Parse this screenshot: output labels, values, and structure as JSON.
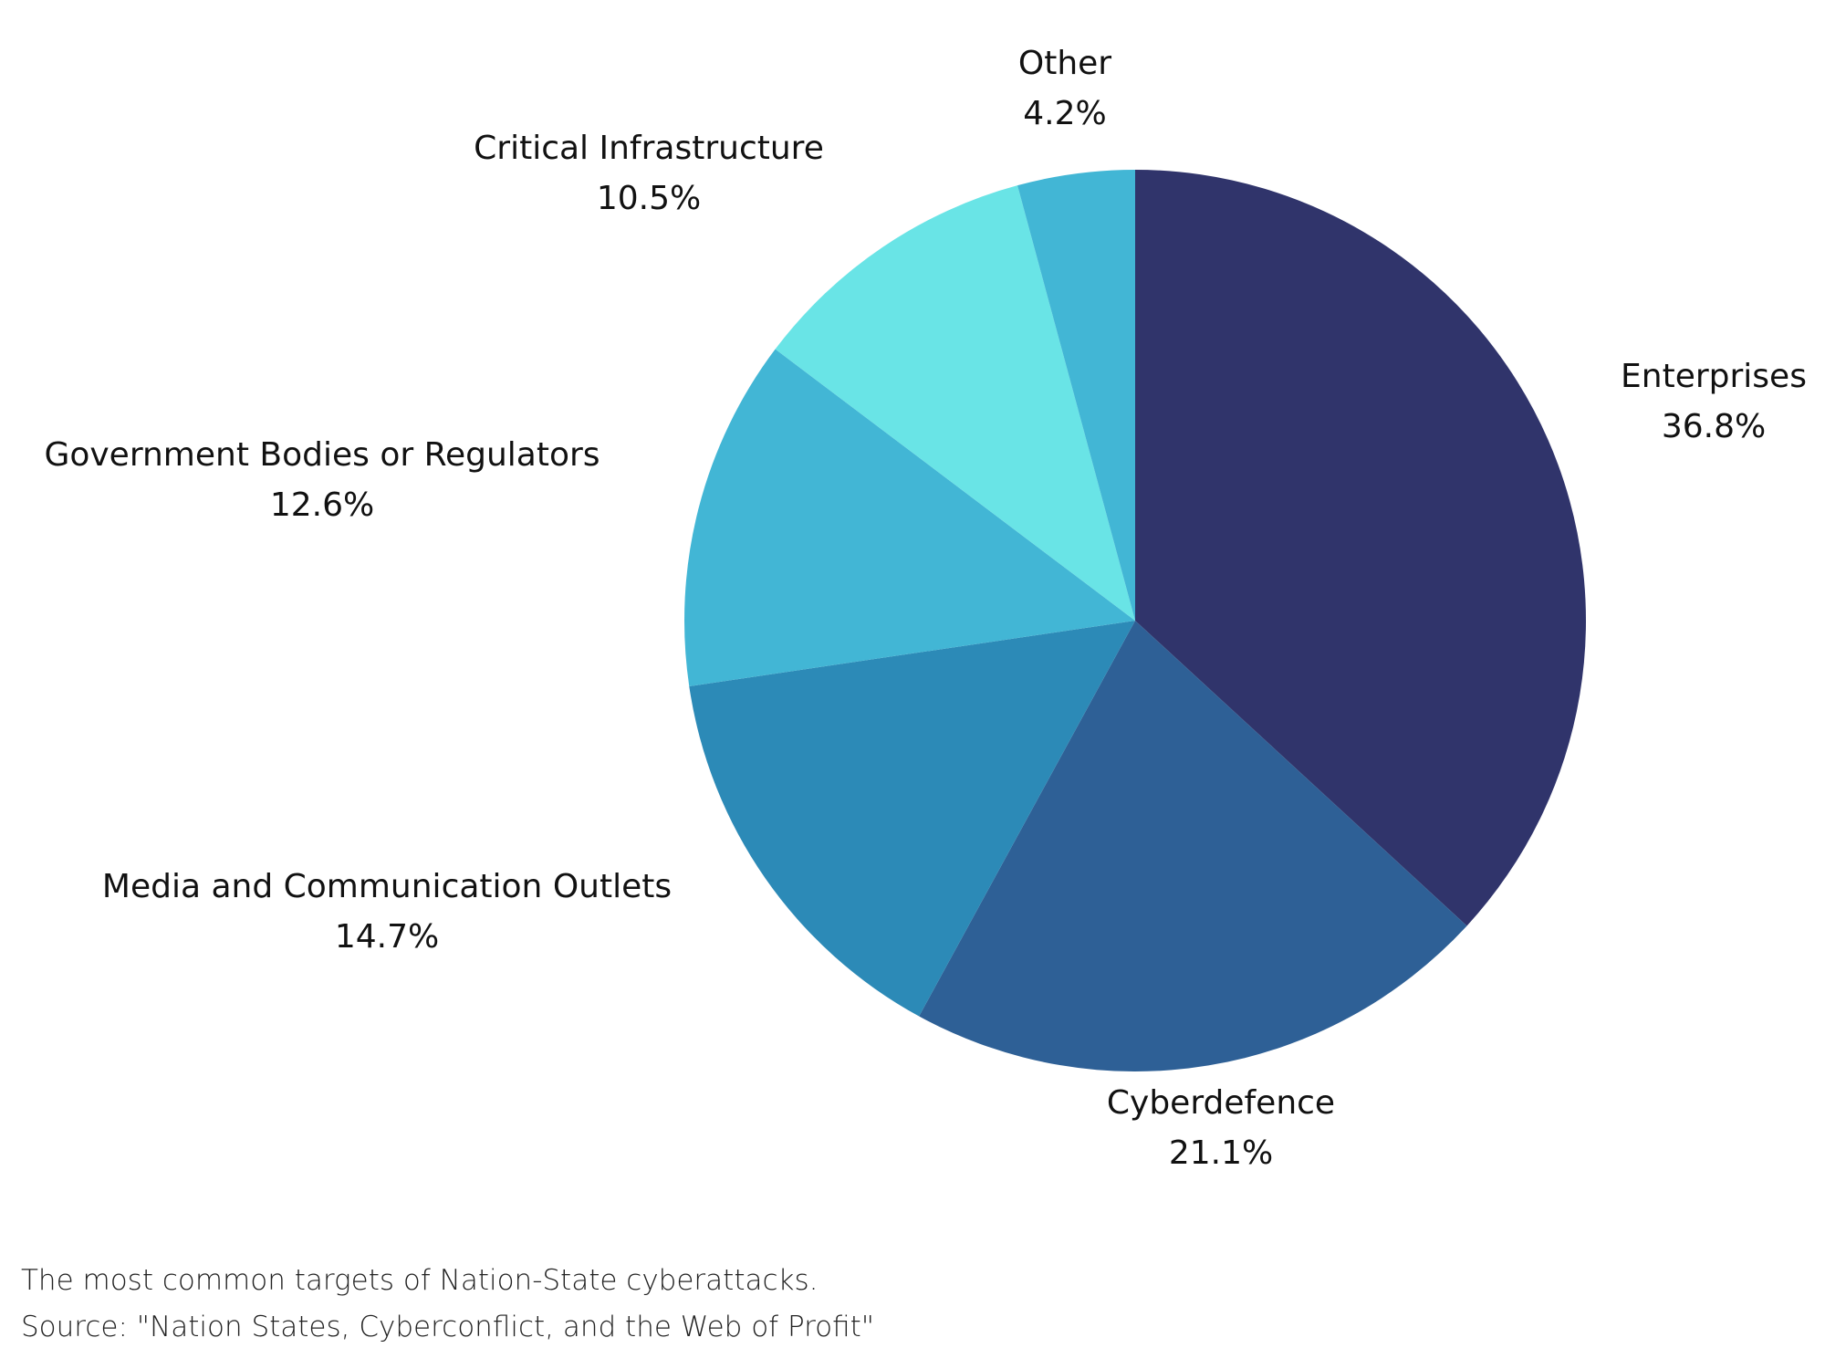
{
  "chart_data": {
    "type": "pie",
    "start_angle": "12 o'clock",
    "direction": "clockwise",
    "slices": [
      {
        "label": "Enterprises",
        "value": 36.8,
        "value_label": "36.8%",
        "color": "#30346b"
      },
      {
        "label": "Cyberdefence",
        "value": 21.1,
        "value_label": "21.1%",
        "color": "#2e6096"
      },
      {
        "label": "Media and Communication Outlets",
        "value": 14.7,
        "value_label": "14.7%",
        "color": "#2c8ab7"
      },
      {
        "label": "Government Bodies or Regulators",
        "value": 12.6,
        "value_label": "12.6%",
        "color": "#42b6d5"
      },
      {
        "label": "Critical Infrastructure",
        "value": 10.5,
        "value_label": "10.5%",
        "color": "#69e4e6"
      },
      {
        "label": "Other",
        "value": 4.2,
        "value_label": "4.2%",
        "color": "#42b6d5"
      }
    ]
  },
  "caption": {
    "line1": "The most common targets of Nation-State cyberattacks.",
    "line2": "Source: \"Nation States, Cyberconflict, and the Web of Profit\""
  }
}
